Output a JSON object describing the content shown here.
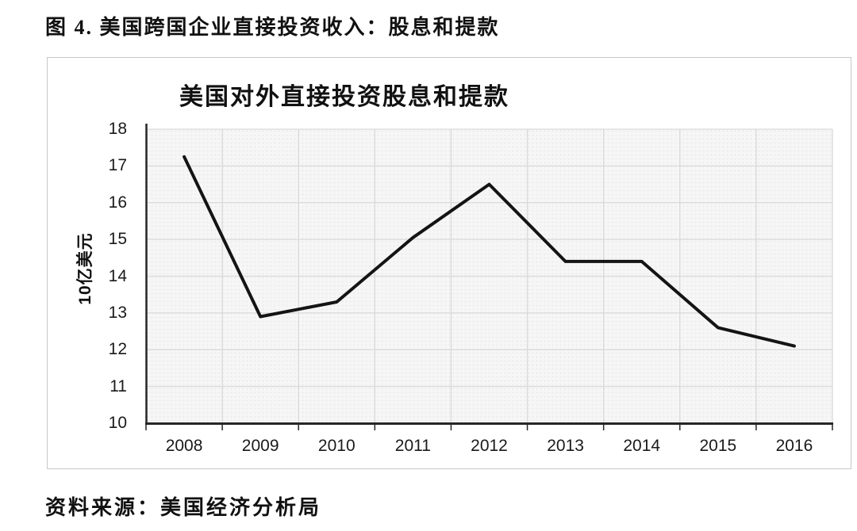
{
  "figure_title": "图 4. 美国跨国企业直接投资收入：股息和提款",
  "source_note": "资料来源：美国经济分析局",
  "colors": {
    "line": "#141414",
    "grid": "#d9d9d9",
    "axis": "#262626",
    "plot_background": "#f6f6f6",
    "frame_border": "#c8c8c8",
    "text": "#111111"
  },
  "chart_data": {
    "type": "line",
    "title": "美国对外直接投资股息和提款",
    "xlabel": "",
    "ylabel": "10亿美元",
    "categories": [
      "2008",
      "2009",
      "2010",
      "2011",
      "2012",
      "2013",
      "2014",
      "2015",
      "2016"
    ],
    "series": [
      {
        "name": "美国对外直接投资股息和提款",
        "values": [
          17.25,
          12.9,
          13.3,
          15.05,
          16.5,
          14.4,
          14.4,
          12.6,
          12.1
        ]
      }
    ],
    "ylim": [
      10,
      18
    ],
    "ytick_step": 1,
    "grid": true,
    "legend_position": "none"
  }
}
